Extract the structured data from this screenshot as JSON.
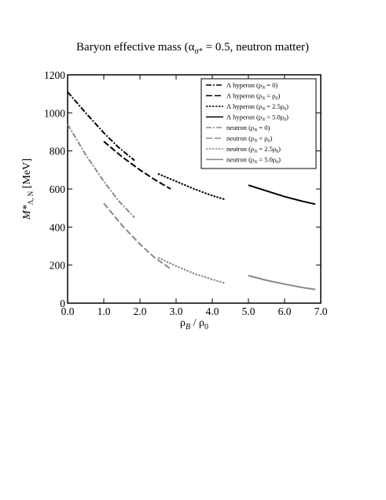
{
  "chart_data": {
    "type": "line",
    "title": "Baryon effective mass (α",
    "title_subscript": "σ*",
    "title_suffix": " = 0.5, neutron matter)",
    "xlabel_main": "ρ",
    "xlabel_sub": "B",
    "xlabel_suffix": " / ρ",
    "xlabel_sub2": "0",
    "ylabel_main": "M*",
    "ylabel_sub": "Λ, N",
    "ylabel_suffix": " [MeV]",
    "xlim": [
      0,
      7
    ],
    "ylim": [
      0,
      1200
    ],
    "xticks": [
      "0.0",
      "1.0",
      "2.0",
      "3.0",
      "4.0",
      "5.0",
      "6.0",
      "7.0"
    ],
    "xtick_values": [
      0,
      1,
      2,
      3,
      4,
      5,
      6,
      7
    ],
    "yticks": [
      "0",
      "200",
      "400",
      "600",
      "800",
      "1000",
      "1200"
    ],
    "ytick_values": [
      0,
      200,
      400,
      600,
      800,
      1000,
      1200
    ],
    "grid": false,
    "legend_position": "top-right",
    "series": [
      {
        "legend_main": "Λ hyperon (ρ",
        "legend_sub": "N",
        "legend_suffix": " = 0)",
        "color": "#000000",
        "dash": "7,2,2,2",
        "width": 2,
        "x": [
          0,
          0.5,
          1.0,
          1.4,
          1.85
        ],
        "y": [
          1110,
          1000,
          895,
          820,
          750
        ]
      },
      {
        "legend_main": "Λ hyperon (ρ",
        "legend_sub": "N",
        "legend_suffix": " = ρ",
        "legend_sub2": "0",
        "legend_end": ")",
        "color": "#000000",
        "dash": "8,3",
        "width": 2,
        "x": [
          1.0,
          1.5,
          2.0,
          2.4,
          2.85
        ],
        "y": [
          850,
          770,
          700,
          650,
          600
        ]
      },
      {
        "legend_main": "Λ hyperon (ρ",
        "legend_sub": "N",
        "legend_suffix": " = 2.5ρ",
        "legend_sub2": "0",
        "legend_end": ")",
        "color": "#000000",
        "dash": "2.5,1.5",
        "width": 2,
        "x": [
          2.5,
          3.0,
          3.5,
          4.0,
          4.35
        ],
        "y": [
          680,
          640,
          600,
          565,
          545
        ]
      },
      {
        "legend_main": "Λ hyperon (ρ",
        "legend_sub": "N",
        "legend_suffix": " = 5.0ρ",
        "legend_sub2": "0",
        "legend_end": ")",
        "color": "#000000",
        "dash": "",
        "width": 2,
        "x": [
          5.0,
          5.5,
          6.0,
          6.5,
          6.85
        ],
        "y": [
          620,
          590,
          560,
          535,
          520
        ]
      },
      {
        "legend_main": "neutron (ρ",
        "legend_sub": "N",
        "legend_suffix": " = 0)",
        "color": "#888888",
        "dash": "7,2,2,2",
        "width": 2,
        "x": [
          0,
          0.5,
          1.0,
          1.4,
          1.85
        ],
        "y": [
          940,
          780,
          640,
          540,
          450
        ]
      },
      {
        "legend_main": "neutron (ρ",
        "legend_sub": "N",
        "legend_suffix": " = ρ",
        "legend_sub2": "0",
        "legend_end": ")",
        "color": "#888888",
        "dash": "8,3",
        "width": 2,
        "x": [
          1.0,
          1.5,
          2.0,
          2.4,
          2.85
        ],
        "y": [
          525,
          410,
          310,
          240,
          180
        ]
      },
      {
        "legend_main": "neutron (ρ",
        "legend_sub": "N",
        "legend_suffix": " = 2.5ρ",
        "legend_sub2": "0",
        "legend_end": ")",
        "color": "#888888",
        "dash": "2.5,1.5",
        "width": 2,
        "x": [
          2.5,
          3.0,
          3.5,
          4.0,
          4.35
        ],
        "y": [
          240,
          195,
          155,
          125,
          105
        ]
      },
      {
        "legend_main": "neutron (ρ",
        "legend_sub": "N",
        "legend_suffix": " = 5.0ρ",
        "legend_sub2": "0",
        "legend_end": ")",
        "color": "#888888",
        "dash": "",
        "width": 2,
        "x": [
          5.0,
          5.5,
          6.0,
          6.5,
          6.85
        ],
        "y": [
          145,
          120,
          100,
          82,
          72
        ]
      }
    ]
  }
}
